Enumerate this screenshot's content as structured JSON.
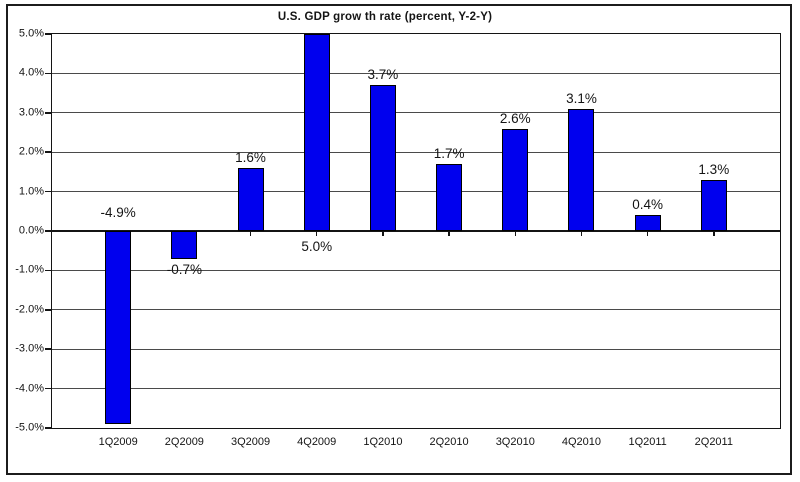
{
  "window": {
    "background": "#ffffff",
    "border_color": "#1c1c1c"
  },
  "chart_data": {
    "type": "bar",
    "title": "U.S. GDP grow th rate (percent, Y-2-Y)",
    "categories": [
      "1Q2009",
      "2Q2009",
      "3Q2009",
      "4Q2009",
      "1Q2010",
      "2Q2010",
      "3Q2010",
      "4Q2010",
      "1Q2011",
      "2Q2011"
    ],
    "values": [
      -4.9,
      -0.7,
      1.6,
      5.0,
      3.7,
      1.7,
      2.6,
      3.1,
      0.4,
      1.3
    ],
    "bar_labels": [
      "-4.9%",
      "-0.7%",
      "1.6%",
      "5.0%",
      "3.7%",
      "1.7%",
      "2.6%",
      "3.1%",
      "0.4%",
      "1.3%"
    ],
    "bar_label_placement": [
      "above_zero",
      "below_bar",
      "above_bar",
      "below_zero",
      "above_bar",
      "above_bar",
      "above_bar",
      "above_bar",
      "above_bar",
      "above_bar"
    ],
    "xlabel": "",
    "ylabel": "",
    "ylim": [
      -5.0,
      5.0
    ],
    "ytick_step": 1.0,
    "ytick_labels": [
      "5.0%",
      "4.0%",
      "3.0%",
      "2.0%",
      "1.0%",
      "0.0%",
      "-1.0%",
      "-2.0%",
      "-3.0%",
      "-4.0%",
      "-5.0%"
    ],
    "grid": true,
    "legend_position": "none",
    "colors": {
      "bar_fill": "#0000EE",
      "bar_border": "#000000",
      "gridline": "#4a4a4a",
      "axis": "#141414",
      "text": "#141414"
    }
  }
}
